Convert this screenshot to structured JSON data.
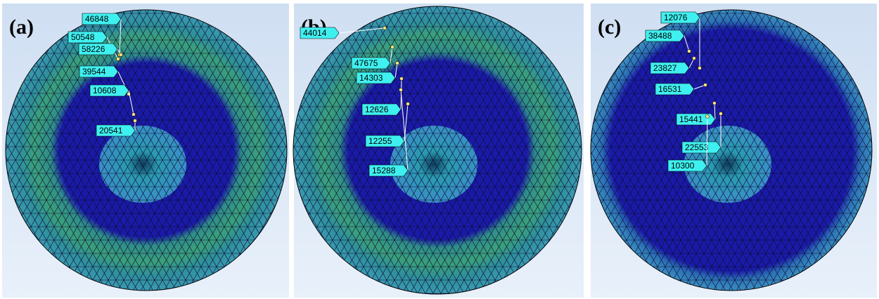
{
  "panels": [
    {
      "label": "(a)",
      "callouts": [
        46848,
        50548,
        58226,
        39544,
        10608,
        20541
      ]
    },
    {
      "label": "(b)",
      "callouts": [
        44014,
        47675,
        14303,
        12626,
        12255,
        15288
      ]
    },
    {
      "label": "(c)",
      "callouts": [
        12076,
        38488,
        23827,
        16531,
        15441,
        22553,
        10300
      ]
    }
  ]
}
